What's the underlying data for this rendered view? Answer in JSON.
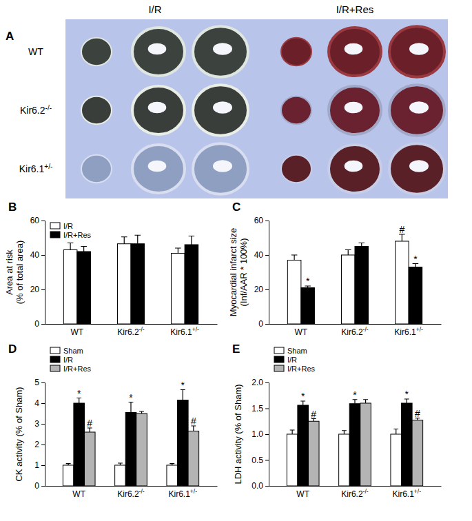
{
  "panel_a": {
    "label": "A",
    "columns": [
      "I/R",
      "I/R+Res"
    ],
    "rows": [
      "WT",
      "Kir6.2-/-",
      "Kir6.1+/-"
    ]
  },
  "chart_data": [
    {
      "type": "bar",
      "panel": "B",
      "y_label": [
        "Area at risk",
        "(% of total area)"
      ],
      "categories": [
        "WT",
        "Kir6.2-/-",
        "Kir6.1+/-"
      ],
      "series": [
        {
          "name": "I/R",
          "color": "#ffffff",
          "values": [
            43,
            46.5,
            41
          ],
          "errors": [
            4,
            4,
            3
          ]
        },
        {
          "name": "I/R+Res",
          "color": "#000000",
          "values": [
            42,
            46.5,
            46
          ],
          "errors": [
            3,
            5,
            5
          ]
        }
      ],
      "ylim": [
        0,
        60
      ],
      "yticks": [
        0,
        20,
        40,
        60
      ],
      "legend": "upper left"
    },
    {
      "type": "bar",
      "panel": "C",
      "y_label": [
        "Myocardial infarct size",
        "(Inf/AAR * 100%)"
      ],
      "categories": [
        "WT",
        "Kir6.2-/-",
        "Kir6.1+/-"
      ],
      "series": [
        {
          "name": "I/R",
          "color": "#ffffff",
          "values": [
            37,
            40,
            48
          ],
          "errors": [
            3,
            3,
            4
          ],
          "annotations": [
            null,
            null,
            "#"
          ]
        },
        {
          "name": "I/R+Res",
          "color": "#000000",
          "values": [
            21,
            45,
            33
          ],
          "errors": [
            1,
            2,
            2
          ],
          "annotations": [
            "*",
            null,
            "*"
          ]
        }
      ],
      "ylim": [
        0,
        60
      ],
      "yticks": [
        0,
        20,
        40,
        60
      ]
    },
    {
      "type": "bar",
      "panel": "D",
      "y_label": [
        "CK activity (% of Sham)"
      ],
      "categories": [
        "WT",
        "Kir6.2-/-",
        "Kir6.1+/-"
      ],
      "series": [
        {
          "name": "Sham",
          "color": "#ffffff",
          "values": [
            1,
            1,
            1
          ],
          "errors": [
            0.08,
            0.1,
            0.08
          ]
        },
        {
          "name": "I/R",
          "color": "#000000",
          "values": [
            4.0,
            3.55,
            4.15
          ],
          "errors": [
            0.25,
            0.5,
            0.5
          ],
          "annotations": [
            "*",
            "*",
            "*"
          ]
        },
        {
          "name": "I/R+Res",
          "color": "#b4b4b4",
          "values": [
            2.6,
            3.5,
            2.65
          ],
          "errors": [
            0.2,
            0.1,
            0.25
          ],
          "annotations": [
            "#",
            null,
            "#"
          ]
        }
      ],
      "ylim": [
        0,
        5
      ],
      "yticks": [
        0,
        1,
        2,
        3,
        4,
        5
      ],
      "legend": "upper left"
    },
    {
      "type": "bar",
      "panel": "E",
      "y_label": [
        "LDH activity (% of Sham)"
      ],
      "categories": [
        "WT",
        "Kir6.2-/-",
        "Kir6.1+/-"
      ],
      "series": [
        {
          "name": "Sham",
          "color": "#ffffff",
          "values": [
            1,
            1,
            1
          ],
          "errors": [
            0.08,
            0.07,
            0.1
          ]
        },
        {
          "name": "I/R",
          "color": "#000000",
          "values": [
            1.56,
            1.59,
            1.6
          ],
          "errors": [
            0.08,
            0.08,
            0.08
          ],
          "annotations": [
            "*",
            "*",
            "*"
          ]
        },
        {
          "name": "I/R+Res",
          "color": "#b4b4b4",
          "values": [
            1.25,
            1.6,
            1.27
          ],
          "errors": [
            0.05,
            0.07,
            0.04
          ],
          "annotations": [
            "#",
            null,
            "#"
          ]
        }
      ],
      "ylim": [
        0,
        2
      ],
      "yticks": [
        {
          "value": 0,
          "label": "0.0"
        },
        {
          "value": 0.5,
          "label": "0.5"
        },
        {
          "value": 1,
          "label": "1.0"
        },
        {
          "value": 1.5,
          "label": "1.5"
        },
        {
          "value": 2,
          "label": "2.0"
        }
      ],
      "legend": "upper left"
    }
  ]
}
